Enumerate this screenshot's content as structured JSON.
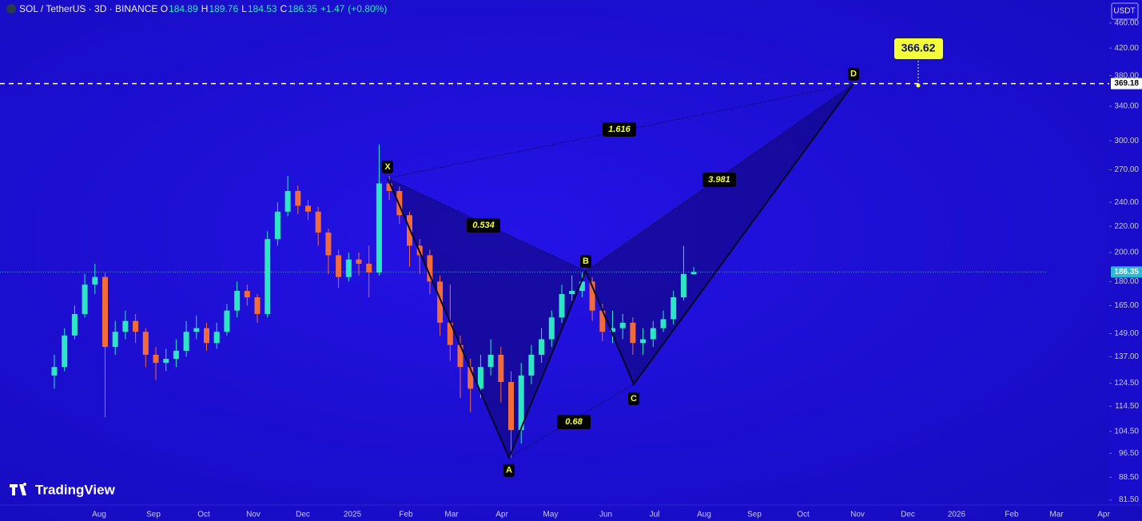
{
  "header": {
    "symbol": "SOL / TetherUS · 3D · BINANCE",
    "o_label": "O",
    "open": 184.89,
    "h_label": "H",
    "high": 189.76,
    "l_label": "L",
    "low": 184.53,
    "c_label": "C",
    "close": 186.35,
    "change": "+1.47",
    "change_pct": "(+0.80%)"
  },
  "currency": "USDT",
  "logo": "TradingView",
  "chart_data": {
    "type": "candlestick",
    "log_scale": true,
    "up_color": "#2ee6c5",
    "down_color": "#f26b3a",
    "ylim": [
      80,
      500
    ],
    "yticks": [
      {
        "value": 460,
        "label": "460.00"
      },
      {
        "value": 420,
        "label": "420.00"
      },
      {
        "value": 380,
        "label": "380.00"
      },
      {
        "value": 340,
        "label": "340.00"
      },
      {
        "value": 300,
        "label": "300.00"
      },
      {
        "value": 270,
        "label": "270.00"
      },
      {
        "value": 240,
        "label": "240.00"
      },
      {
        "value": 220,
        "label": "220.00"
      },
      {
        "value": 200,
        "label": "200.00"
      },
      {
        "value": 180,
        "label": "180.00"
      },
      {
        "value": 165,
        "label": "165.00"
      },
      {
        "value": 149,
        "label": "149.00"
      },
      {
        "value": 137,
        "label": "137.00"
      },
      {
        "value": 124.5,
        "label": "124.50"
      },
      {
        "value": 114.5,
        "label": "114.50"
      },
      {
        "value": 104.5,
        "label": "104.50"
      },
      {
        "value": 96.5,
        "label": "96.50"
      },
      {
        "value": 88.5,
        "label": "88.50"
      },
      {
        "value": 81.5,
        "label": "81.50"
      }
    ],
    "categories": [
      "Aug",
      "Sep",
      "Oct",
      "Nov",
      "Dec",
      "2025",
      "Feb",
      "Mar",
      "Apr",
      "May",
      "Jun",
      "Jul",
      "Aug",
      "Sep",
      "Oct",
      "Nov",
      "Dec",
      "2026",
      "Feb",
      "Mar",
      "Apr"
    ],
    "candles": {
      "open": [
        128,
        132,
        148,
        160,
        178,
        183,
        142,
        150,
        156,
        150,
        138,
        134,
        136,
        140,
        150,
        152,
        144,
        150,
        162,
        174,
        170,
        160,
        210,
        232,
        250,
        237,
        232,
        215,
        198,
        183,
        195,
        192,
        186,
        257,
        250,
        229,
        205,
        198,
        180,
        155,
        143,
        132,
        122,
        132,
        138,
        125,
        105,
        128,
        138,
        146,
        158,
        172,
        174,
        180,
        162,
        150,
        152,
        155,
        144,
        146,
        152,
        157,
        170,
        184.89
      ],
      "high": [
        138,
        152,
        165,
        185,
        192,
        186,
        156,
        162,
        160,
        152,
        142,
        141,
        146,
        156,
        159,
        155,
        155,
        166,
        180,
        178,
        172,
        216,
        240,
        264,
        255,
        242,
        236,
        218,
        202,
        200,
        200,
        205,
        296,
        264,
        254,
        232,
        210,
        202,
        184,
        178,
        148,
        136,
        138,
        146,
        142,
        130,
        134,
        143,
        152,
        162,
        178,
        184,
        186,
        183,
        166,
        162,
        160,
        158,
        152,
        156,
        162,
        174,
        205,
        189.76
      ],
      "low": [
        122,
        130,
        146,
        158,
        172,
        110,
        138,
        146,
        144,
        132,
        126,
        130,
        132,
        137,
        146,
        140,
        141,
        148,
        158,
        165,
        155,
        158,
        205,
        228,
        230,
        225,
        205,
        185,
        176,
        180,
        184,
        170,
        184,
        242,
        222,
        190,
        185,
        172,
        148,
        135,
        118,
        112,
        118,
        128,
        116,
        95,
        100,
        124,
        134,
        142,
        155,
        168,
        170,
        156,
        145,
        144,
        146,
        138,
        138,
        142,
        150,
        154,
        168,
        184.53
      ],
      "close": [
        132,
        148,
        160,
        178,
        183,
        142,
        150,
        156,
        150,
        138,
        134,
        136,
        140,
        150,
        152,
        144,
        150,
        162,
        174,
        170,
        160,
        210,
        232,
        250,
        237,
        232,
        215,
        198,
        183,
        195,
        192,
        186,
        257,
        250,
        229,
        205,
        198,
        180,
        155,
        143,
        132,
        122,
        132,
        138,
        125,
        105,
        128,
        138,
        146,
        158,
        172,
        174,
        180,
        162,
        150,
        152,
        155,
        144,
        146,
        152,
        157,
        170,
        185,
        186.35
      ]
    },
    "last_price": {
      "value": 186.35,
      "label": "186.35"
    },
    "level": {
      "value": 369.18,
      "label": "369.18"
    },
    "target": {
      "value": 366.62,
      "label": "366.62"
    },
    "pattern": {
      "points": [
        {
          "label": "X",
          "price": 262
        },
        {
          "label": "A",
          "price": 95
        },
        {
          "label": "B",
          "price": 187
        },
        {
          "label": "C",
          "price": 124
        },
        {
          "label": "D",
          "price": 369
        }
      ],
      "ratios": [
        0.534,
        1.616,
        3.981,
        0.68
      ]
    }
  }
}
